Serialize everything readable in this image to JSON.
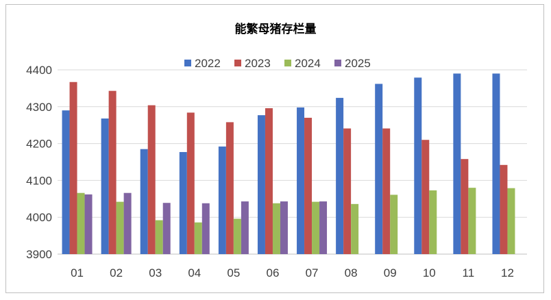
{
  "chart_data": {
    "type": "bar",
    "title": "能繁母猪存栏量",
    "xlabel": "",
    "ylabel": "",
    "categories": [
      "01",
      "02",
      "03",
      "04",
      "05",
      "06",
      "07",
      "08",
      "09",
      "10",
      "11",
      "12"
    ],
    "ylim": [
      3900,
      4400
    ],
    "yticks": [
      3900,
      4000,
      4100,
      4200,
      4300,
      4400
    ],
    "grid": true,
    "legend_position": "top",
    "series": [
      {
        "name": "2022",
        "color": "#4472C4",
        "values": [
          4290,
          4268,
          4185,
          4177,
          4192,
          4277,
          4298,
          4324,
          4362,
          4379,
          4390,
          4390
        ]
      },
      {
        "name": "2023",
        "color": "#C0504D",
        "values": [
          4367,
          4343,
          4304,
          4284,
          4258,
          4296,
          4270,
          4241,
          4241,
          4210,
          4158,
          4142
        ]
      },
      {
        "name": "2024",
        "color": "#9BBB59",
        "values": [
          4066,
          4042,
          3992,
          3986,
          3996,
          4038,
          4042,
          4036,
          4061,
          4073,
          4080,
          4079
        ]
      },
      {
        "name": "2025",
        "color": "#8064A2",
        "values": [
          4062,
          4066,
          4039,
          4038,
          4043,
          4043,
          4043,
          null,
          null,
          null,
          null,
          null
        ]
      }
    ]
  }
}
